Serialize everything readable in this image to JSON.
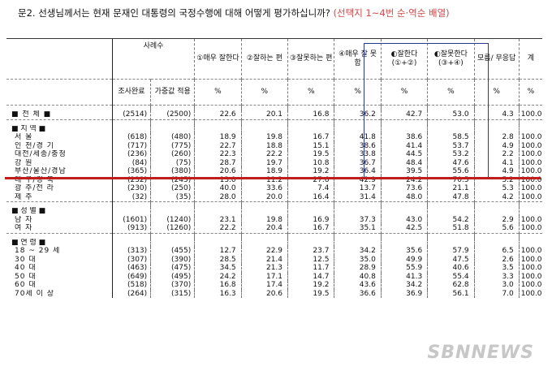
{
  "question": {
    "main": "문2. 선생님께서는 현재 문재인 대통령의 국정수행에 대해 어떻게 평가하십니까?",
    "note": "(선택지 1~4번 순·역순 배열)"
  },
  "header": {
    "sample_size": "사례수",
    "completed": "조사완료",
    "weighted": "가중값 적용",
    "col1": "①매우 잘한다",
    "col2": "②잘하는 편",
    "col3": "③잘못하는 편",
    "col4": "④매우 잘 못함",
    "col5": "◐잘한다 (①+②)",
    "col6": "◐잘못한다 (③+④)",
    "col7": "모름/ 무응답",
    "col8": "계",
    "pct": "%"
  },
  "total": {
    "label": "■ 전 체 ■",
    "n1": "(2514)",
    "n2": "(2500)",
    "v": [
      "22.6",
      "20.1",
      "16.8",
      "36.2",
      "42.7",
      "53.0",
      "4.3",
      "100.0"
    ]
  },
  "sections": [
    {
      "title": "■ 지 역 ■",
      "rows": [
        {
          "label": "서 울",
          "n1": "(618)",
          "n2": "(480)",
          "v": [
            "18.9",
            "19.8",
            "16.7",
            "41.8",
            "38.6",
            "58.5",
            "2.8",
            "100.0"
          ]
        },
        {
          "label": "인 천/경 기",
          "n1": "(717)",
          "n2": "(775)",
          "v": [
            "22.7",
            "18.8",
            "15.1",
            "38.6",
            "41.4",
            "53.7",
            "4.9",
            "100.0"
          ]
        },
        {
          "label": "대전/세종/충청",
          "n1": "(236)",
          "n2": "(260)",
          "v": [
            "22.3",
            "22.2",
            "19.5",
            "33.8",
            "44.5",
            "53.2",
            "2.2",
            "100.0"
          ]
        },
        {
          "label": "강 원",
          "n1": "(84)",
          "n2": "(75)",
          "v": [
            "28.7",
            "19.7",
            "10.8",
            "36.7",
            "48.4",
            "47.6",
            "4.1",
            "100.0"
          ]
        },
        {
          "label": "부산/울산/경남",
          "n1": "(365)",
          "n2": "(380)",
          "v": [
            "20.6",
            "18.9",
            "19.2",
            "36.4",
            "39.5",
            "55.6",
            "4.9",
            "100.0"
          ]
        },
        {
          "label": "대 구/경 북",
          "n1": "(232)",
          "n2": "(245)",
          "v": [
            "13.0",
            "11.2",
            "27.6",
            "42.9",
            "24.2",
            "70.5",
            "5.2",
            "100.0"
          ]
        },
        {
          "label": "광 주/전 라",
          "n1": "(230)",
          "n2": "(250)",
          "v": [
            "40.0",
            "33.6",
            "7.4",
            "13.7",
            "73.6",
            "21.1",
            "5.3",
            "100.0"
          ]
        },
        {
          "label": "제 주",
          "n1": "(32)",
          "n2": "(35)",
          "v": [
            "28.0",
            "20.0",
            "16.4",
            "31.4",
            "48.0",
            "47.8",
            "4.2",
            "100.0"
          ]
        }
      ]
    },
    {
      "title": "■ 성 별 ■",
      "rows": [
        {
          "label": "남 자",
          "n1": "(1601)",
          "n2": "(1240)",
          "v": [
            "23.1",
            "19.8",
            "16.9",
            "37.3",
            "43.0",
            "54.2",
            "2.9",
            "100.0"
          ]
        },
        {
          "label": "여 자",
          "n1": "(913)",
          "n2": "(1260)",
          "n2x": "",
          "v": [
            "22.2",
            "20.4",
            "16.7",
            "35.1",
            "42.5",
            "51.8",
            "5.6",
            "100.0"
          ]
        }
      ]
    },
    {
      "title": "■ 연 령 ■",
      "rows": [
        {
          "label": "18 ~ 29 세",
          "n1": "(313)",
          "n2": "(455)",
          "v": [
            "12.7",
            "22.9",
            "23.7",
            "34.2",
            "35.6",
            "57.9",
            "6.5",
            "100.0"
          ]
        },
        {
          "label": "30 대",
          "n1": "(307)",
          "n2": "(390)",
          "v": [
            "28.5",
            "21.4",
            "12.5",
            "35.0",
            "49.9",
            "47.5",
            "2.6",
            "100.0"
          ]
        },
        {
          "label": "40 대",
          "n1": "(463)",
          "n2": "(475)",
          "v": [
            "34.5",
            "21.3",
            "11.7",
            "28.9",
            "55.9",
            "40.6",
            "3.5",
            "100.0"
          ]
        },
        {
          "label": "50 대",
          "n1": "(649)",
          "n2": "(495)",
          "v": [
            "24.2",
            "17.1",
            "14.7",
            "40.8",
            "41.3",
            "55.4",
            "3.3",
            "100.0"
          ]
        },
        {
          "label": "60 대",
          "n1": "(518)",
          "n2": "(370)",
          "v": [
            "16.8",
            "17.4",
            "19.2",
            "43.6",
            "34.2",
            "62.8",
            "3.0",
            "100.0"
          ]
        },
        {
          "label": "70세 이 상",
          "n1": "(264)",
          "n2": "(315)",
          "v": [
            "16.3",
            "20.6",
            "19.5",
            "36.6",
            "36.9",
            "56.1",
            "7.0",
            "100.0"
          ]
        }
      ]
    }
  ],
  "watermark": "SBNNEWS"
}
